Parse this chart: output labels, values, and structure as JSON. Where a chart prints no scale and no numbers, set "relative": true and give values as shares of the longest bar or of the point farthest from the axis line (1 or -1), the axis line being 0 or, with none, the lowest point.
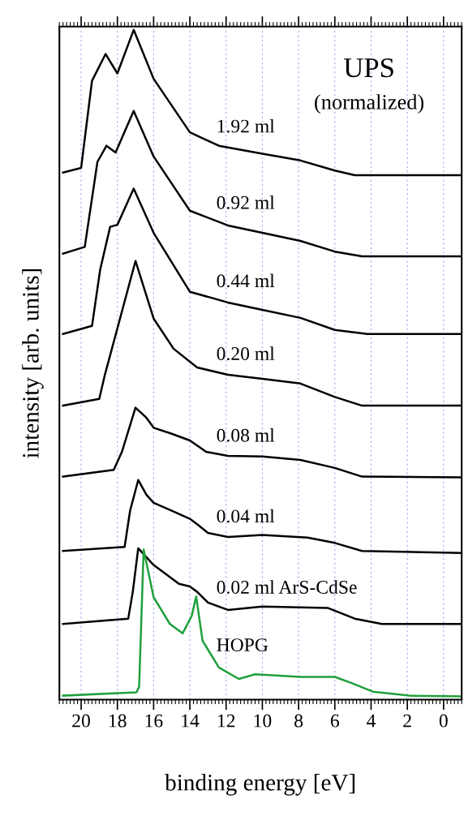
{
  "chart_data": {
    "type": "line",
    "title": "UPS",
    "subtitle": "(normalized)",
    "xlabel": "binding energy [eV]",
    "ylabel": "intensity [arb. units]",
    "relative": true,
    "xlim": [
      21.2,
      -1.0
    ],
    "xticks": [
      20,
      18,
      16,
      14,
      12,
      10,
      8,
      6,
      4,
      2,
      0
    ],
    "grid": "x",
    "legend": false,
    "tick_labels": "x",
    "series": [
      {
        "name": "1.92 ml",
        "color": "#000000",
        "x": [
          21.0,
          20.0,
          19.4,
          18.65,
          18.0,
          17.1,
          16.0,
          14.0,
          12.4,
          10.0,
          7.9,
          6.0,
          4.9,
          -1.0
        ],
        "values": [
          0.787,
          0.794,
          0.924,
          0.964,
          0.935,
          1.0,
          0.927,
          0.847,
          0.827,
          0.815,
          0.805,
          0.79,
          0.783,
          0.783
        ]
      },
      {
        "name": "0.92 ml",
        "color": "#000000",
        "x": [
          21.0,
          19.8,
          19.1,
          18.6,
          18.1,
          17.1,
          16.0,
          14.0,
          11.9,
          10.0,
          7.9,
          6.0,
          4.5,
          -1.0
        ],
        "values": [
          0.666,
          0.676,
          0.803,
          0.827,
          0.817,
          0.879,
          0.811,
          0.73,
          0.708,
          0.697,
          0.685,
          0.669,
          0.662,
          0.662
        ]
      },
      {
        "name": "0.44 ml",
        "color": "#000000",
        "x": [
          21.0,
          19.4,
          18.95,
          18.4,
          18.0,
          17.1,
          16.0,
          14.0,
          11.9,
          10.0,
          7.9,
          6.0,
          4.2,
          -1.0
        ],
        "values": [
          0.546,
          0.558,
          0.642,
          0.706,
          0.709,
          0.763,
          0.697,
          0.609,
          0.593,
          0.582,
          0.57,
          0.552,
          0.546,
          0.546
        ]
      },
      {
        "name": "0.20 ml",
        "color": "#000000",
        "x": [
          21.0,
          19.0,
          18.7,
          18.5,
          17.0,
          16.0,
          14.9,
          13.6,
          11.9,
          10.0,
          7.9,
          6.0,
          4.5,
          -1.0
        ],
        "values": [
          0.439,
          0.449,
          0.484,
          0.504,
          0.655,
          0.569,
          0.524,
          0.496,
          0.485,
          0.479,
          0.472,
          0.452,
          0.439,
          0.439
        ]
      },
      {
        "name": "0.08 ml",
        "color": "#000000",
        "x": [
          21.0,
          18.2,
          17.75,
          17.0,
          16.4,
          16.0,
          15.0,
          14.0,
          13.1,
          11.9,
          10.0,
          7.9,
          6.0,
          4.5,
          -1.0
        ],
        "values": [
          0.333,
          0.343,
          0.37,
          0.436,
          0.421,
          0.406,
          0.397,
          0.387,
          0.37,
          0.364,
          0.363,
          0.358,
          0.346,
          0.333,
          0.332
        ]
      },
      {
        "name": "0.04 ml",
        "color": "#000000",
        "x": [
          21.0,
          17.6,
          17.3,
          16.85,
          16.4,
          16.0,
          15.0,
          14.0,
          13.6,
          13.0,
          11.9,
          10.0,
          7.5,
          6.0,
          4.5,
          -1.0
        ],
        "values": [
          0.222,
          0.228,
          0.282,
          0.328,
          0.306,
          0.294,
          0.282,
          0.27,
          0.262,
          0.249,
          0.243,
          0.246,
          0.242,
          0.234,
          0.222,
          0.219
        ]
      },
      {
        "name": "0.02 ml ArS-CdSe",
        "color": "#000000",
        "x": [
          21.0,
          17.4,
          17.15,
          16.85,
          16.0,
          14.6,
          14.0,
          13.6,
          13.0,
          11.9,
          10.0,
          6.4,
          4.9,
          3.4,
          -1.0
        ],
        "values": [
          0.113,
          0.121,
          0.161,
          0.226,
          0.201,
          0.173,
          0.169,
          0.161,
          0.145,
          0.134,
          0.139,
          0.137,
          0.121,
          0.113,
          0.113
        ]
      },
      {
        "name": "HOPG",
        "color": "#1fa03c",
        "x": [
          21.0,
          16.95,
          16.8,
          16.55,
          16.0,
          15.1,
          14.4,
          13.9,
          13.65,
          13.3,
          12.4,
          11.3,
          10.4,
          7.9,
          6.0,
          5.1,
          3.9,
          1.9,
          -1.0
        ],
        "values": [
          0.006,
          0.011,
          0.019,
          0.224,
          0.153,
          0.113,
          0.099,
          0.125,
          0.154,
          0.088,
          0.048,
          0.031,
          0.038,
          0.034,
          0.034,
          0.025,
          0.012,
          0.006,
          0.005
        ]
      }
    ]
  }
}
